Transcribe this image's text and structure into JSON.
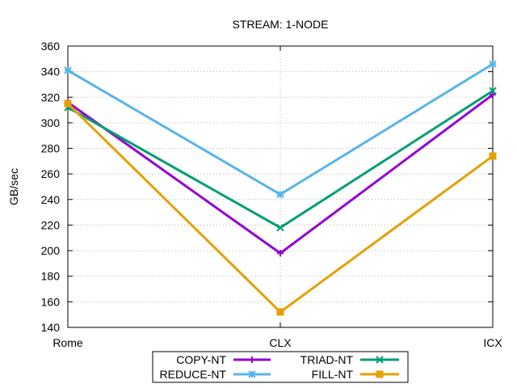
{
  "chart_data": {
    "type": "line",
    "title": "STREAM: 1-NODE",
    "xlabel": "",
    "ylabel": "GB/sec",
    "categories": [
      "Rome",
      "CLX",
      "ICX"
    ],
    "ylim": [
      140,
      360
    ],
    "yticks": [
      "140",
      "160",
      "180",
      "200",
      "220",
      "240",
      "260",
      "280",
      "300",
      "320",
      "340",
      "360"
    ],
    "grid": true,
    "legend_position": "bottom-center",
    "series": [
      {
        "name": "COPY-NT",
        "color": "#9400d3",
        "marker": "plus",
        "values": [
          316,
          198,
          322
        ]
      },
      {
        "name": "TRIAD-NT",
        "color": "#009e73",
        "marker": "cross",
        "values": [
          312,
          218,
          325
        ]
      },
      {
        "name": "REDUCE-NT",
        "color": "#56b4e9",
        "marker": "star",
        "values": [
          341,
          244,
          346
        ]
      },
      {
        "name": "FILL-NT",
        "color": "#e69f00",
        "marker": "square",
        "values": [
          315,
          152,
          274
        ]
      }
    ]
  }
}
